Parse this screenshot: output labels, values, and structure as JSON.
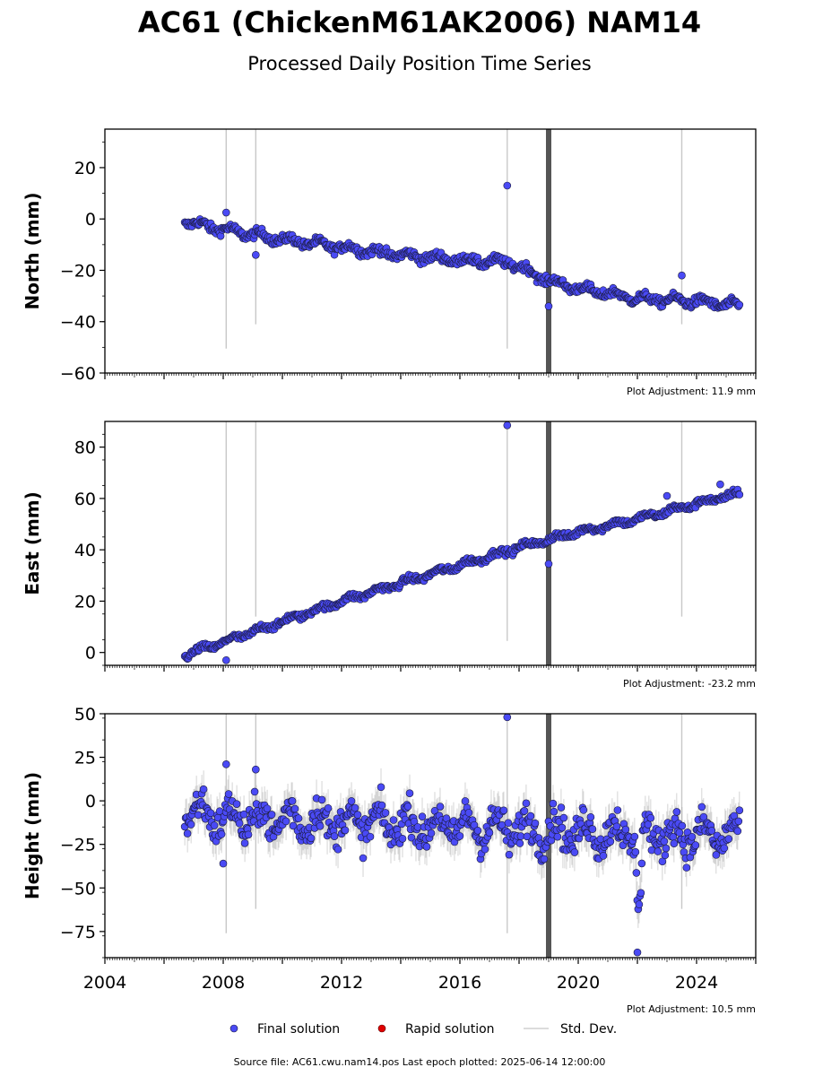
{
  "header": {
    "title": "AC61 (ChickenM61AK2006) NAM14",
    "subtitle": "Processed Daily Position Time Series"
  },
  "legend": {
    "items": [
      {
        "label": "Final solution",
        "color": "#4a4af5",
        "kind": "dot"
      },
      {
        "label": "Rapid solution",
        "color": "#e00000",
        "kind": "dot"
      },
      {
        "label": "Std. Dev.",
        "color": "#d0d0d0",
        "kind": "line"
      }
    ]
  },
  "footer": {
    "source_note": "Source file: AC61.cwu.nam14.pos  Last epoch plotted: 2025-06-14 12:00:00"
  },
  "colors": {
    "final": "#4a4af5",
    "marker_edge": "#1a1a3a",
    "stddev": "#c8c8c8",
    "event_band": "#555555"
  },
  "chart_data": [
    {
      "type": "scatter",
      "ylabel": "North (mm)",
      "xlim": [
        2004,
        2026
      ],
      "ylim": [
        -60,
        35
      ],
      "yticks": [
        -60,
        -40,
        -20,
        0,
        20
      ],
      "xticks": [
        2004,
        2008,
        2012,
        2016,
        2020,
        2024
      ],
      "show_x_tick_labels": false,
      "adjustment": "Plot Adjustment: 11.9 mm",
      "event_lines": [
        2019.0
      ],
      "trend": [
        [
          2006.7,
          -1
        ],
        [
          2008,
          -4
        ],
        [
          2010,
          -8
        ],
        [
          2012,
          -11
        ],
        [
          2014,
          -14
        ],
        [
          2016,
          -16
        ],
        [
          2017.7,
          -17
        ],
        [
          2019,
          -24
        ],
        [
          2020,
          -27
        ],
        [
          2022,
          -31
        ],
        [
          2024,
          -32
        ],
        [
          2025.45,
          -34
        ]
      ],
      "noise": 2.0,
      "outliers": [
        {
          "x": 2008.1,
          "y": 2.5
        },
        {
          "x": 2009.1,
          "y": -14
        },
        {
          "x": 2017.6,
          "y": 13
        },
        {
          "x": 2019.0,
          "y": -34
        },
        {
          "x": 2023.5,
          "y": -22
        }
      ],
      "series": [
        {
          "name": "Final solution",
          "values": "daily positions from 2006.7 to 2025.45"
        }
      ]
    },
    {
      "type": "scatter",
      "ylabel": "East (mm)",
      "xlim": [
        2004,
        2026
      ],
      "ylim": [
        -5,
        90
      ],
      "yticks": [
        0,
        20,
        40,
        60,
        80
      ],
      "xticks": [
        2004,
        2008,
        2012,
        2016,
        2020,
        2024
      ],
      "show_x_tick_labels": false,
      "adjustment": "Plot Adjustment: -23.2 mm",
      "event_lines": [
        2019.0
      ],
      "trend": [
        [
          2006.7,
          -1
        ],
        [
          2008,
          4
        ],
        [
          2010,
          12
        ],
        [
          2012,
          20
        ],
        [
          2014,
          27
        ],
        [
          2016,
          34
        ],
        [
          2018,
          41
        ],
        [
          2020,
          47
        ],
        [
          2022,
          52
        ],
        [
          2023.7,
          57
        ],
        [
          2024,
          58
        ],
        [
          2025.45,
          62
        ]
      ],
      "noise": 1.5,
      "outliers": [
        {
          "x": 2008.1,
          "y": -3
        },
        {
          "x": 2017.6,
          "y": 88.5
        },
        {
          "x": 2019.0,
          "y": 34.5
        },
        {
          "x": 2024.8,
          "y": 65.5
        },
        {
          "x": 2023.0,
          "y": 61
        }
      ],
      "series": [
        {
          "name": "Final solution",
          "values": "daily positions from 2006.7 to 2025.45"
        }
      ]
    },
    {
      "type": "scatter",
      "ylabel": "Height (mm)",
      "xlim": [
        2004,
        2026
      ],
      "ylim": [
        -90,
        50
      ],
      "yticks": [
        -75,
        -50,
        -25,
        0,
        25,
        50
      ],
      "xticks": [
        2004,
        2008,
        2012,
        2016,
        2020,
        2024
      ],
      "xtick_labels": [
        "2004",
        "2008",
        "2012",
        "2016",
        "2020",
        "2024"
      ],
      "show_x_tick_labels": true,
      "adjustment": "Plot Adjustment: 10.5 mm",
      "event_lines": [
        2019.0
      ],
      "trend": [
        [
          2006.7,
          -5
        ],
        [
          2008,
          -10
        ],
        [
          2012,
          -12
        ],
        [
          2016,
          -15
        ],
        [
          2020,
          -18
        ],
        [
          2024,
          -20
        ],
        [
          2025.45,
          -20
        ]
      ],
      "noise": 12,
      "outliers": [
        {
          "x": 2008.1,
          "y": 21
        },
        {
          "x": 2009.1,
          "y": 18
        },
        {
          "x": 2017.6,
          "y": 48
        },
        {
          "x": 2022.0,
          "y": -87
        },
        {
          "x": 2008.0,
          "y": -36
        }
      ],
      "series": [
        {
          "name": "Final solution",
          "values": "daily positions from 2006.7 to 2025.45"
        }
      ]
    }
  ]
}
